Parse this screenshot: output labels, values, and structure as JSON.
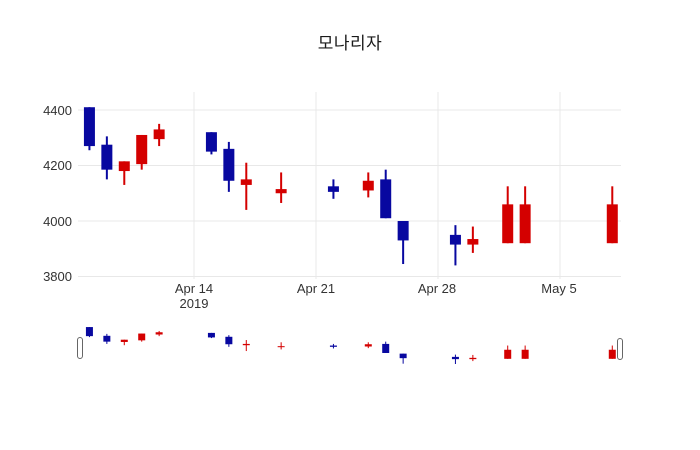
{
  "title": "모나리자",
  "colors": {
    "up": "#D40000",
    "down": "#0808A0",
    "grid": "#E8E8E8",
    "tick_text": "#333333",
    "title_text": "#1A1A1A",
    "handle_border": "#666666"
  },
  "y_axis": {
    "ticks": [
      "4400",
      "4200",
      "4000",
      "3800"
    ],
    "values": [
      4400,
      4200,
      4000,
      3800
    ]
  },
  "x_axis": {
    "ticks": [
      {
        "label": "Apr 14",
        "sublabel": "2019",
        "date": "2019-04-14"
      },
      {
        "label": "Apr 21",
        "sublabel": "",
        "date": "2019-04-21"
      },
      {
        "label": "Apr 28",
        "sublabel": "",
        "date": "2019-04-28"
      },
      {
        "label": "May 5",
        "sublabel": "",
        "date": "2019-05-05"
      }
    ]
  },
  "chart_data": {
    "type": "candlestick",
    "title": "모나리자",
    "ylabel": "",
    "xlabel": "",
    "ylim": [
      3790,
      4465
    ],
    "grid": true,
    "rangeslider": true,
    "up_color": "#D40000",
    "down_color": "#0808A0",
    "candles": [
      {
        "date": "2019-04-08",
        "open": 4410,
        "high": 4410,
        "low": 4255,
        "close": 4270
      },
      {
        "date": "2019-04-09",
        "open": 4275,
        "high": 4305,
        "low": 4150,
        "close": 4185
      },
      {
        "date": "2019-04-10",
        "open": 4180,
        "high": 4215,
        "low": 4130,
        "close": 4215
      },
      {
        "date": "2019-04-11",
        "open": 4205,
        "high": 4310,
        "low": 4185,
        "close": 4310
      },
      {
        "date": "2019-04-12",
        "open": 4295,
        "high": 4350,
        "low": 4270,
        "close": 4330
      },
      {
        "date": "2019-04-15",
        "open": 4320,
        "high": 4320,
        "low": 4240,
        "close": 4250
      },
      {
        "date": "2019-04-16",
        "open": 4260,
        "high": 4285,
        "low": 4105,
        "close": 4145
      },
      {
        "date": "2019-04-17",
        "open": 4130,
        "high": 4210,
        "low": 4040,
        "close": 4150
      },
      {
        "date": "2019-04-19",
        "open": 4100,
        "high": 4175,
        "low": 4065,
        "close": 4115
      },
      {
        "date": "2019-04-22",
        "open": 4125,
        "high": 4150,
        "low": 4080,
        "close": 4105
      },
      {
        "date": "2019-04-24",
        "open": 4110,
        "high": 4175,
        "low": 4085,
        "close": 4145
      },
      {
        "date": "2019-04-25",
        "open": 4150,
        "high": 4185,
        "low": 4010,
        "close": 4010
      },
      {
        "date": "2019-04-26",
        "open": 4000,
        "high": 4000,
        "low": 3845,
        "close": 3930
      },
      {
        "date": "2019-04-29",
        "open": 3950,
        "high": 3985,
        "low": 3840,
        "close": 3915
      },
      {
        "date": "2019-04-30",
        "open": 3915,
        "high": 3980,
        "low": 3885,
        "close": 3935
      },
      {
        "date": "2019-05-02",
        "open": 3920,
        "high": 4125,
        "low": 3920,
        "close": 4060
      },
      {
        "date": "2019-05-03",
        "open": 3920,
        "high": 4125,
        "low": 3920,
        "close": 4060
      },
      {
        "date": "2019-05-08",
        "open": 3920,
        "high": 4125,
        "low": 3920,
        "close": 4060
      }
    ]
  }
}
